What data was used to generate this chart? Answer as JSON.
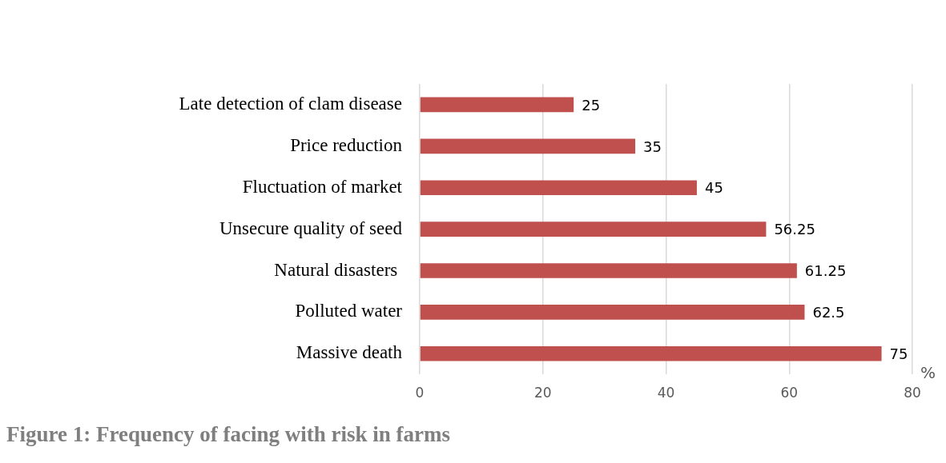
{
  "chart_data": {
    "type": "bar",
    "orientation": "horizontal",
    "title": "Figure 1: Frequency of facing with risk in farms",
    "xlabel": "%",
    "categories": [
      "Late detection of clam disease",
      "Price reduction",
      "Fluctuation of market",
      "Unsecure quality of seed",
      "Natural disasters ",
      "Polluted water",
      "Massive death"
    ],
    "values": [
      25,
      35,
      45,
      56.25,
      61.25,
      62.5,
      75
    ],
    "color": "#c0504d",
    "xlim": [
      0,
      80
    ],
    "xticks": [
      0,
      20,
      40,
      60,
      80
    ],
    "grid": "x",
    "data_labels": true,
    "legend": false
  }
}
